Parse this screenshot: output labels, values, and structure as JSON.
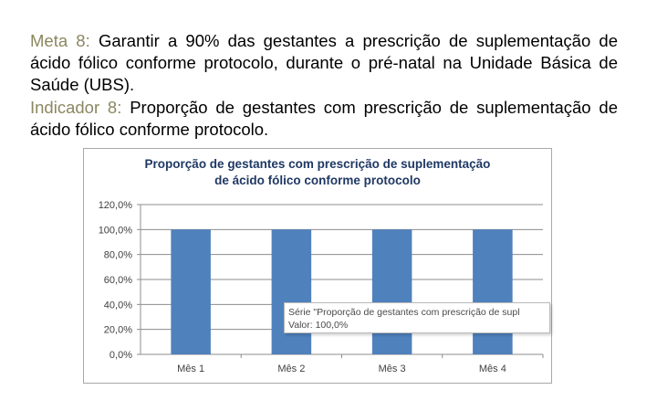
{
  "meta": {
    "label": "Meta 8:",
    "text": "Garantir a 90% das gestantes a prescrição de suplementação de ácido fólico conforme protocolo, durante o pré-natal na Unidade Básica de Saúde (UBS)."
  },
  "indicator": {
    "label": "Indicador 8:",
    "text": "Proporção de gestantes com prescrição de suplementação de ácido fólico conforme protocolo."
  },
  "chart_data": {
    "type": "bar",
    "title_line1": "Proporção de gestantes com prescrição de suplementação",
    "title_line2": "de ácido fólico conforme protocolo",
    "categories": [
      "Mês 1",
      "Mês 2",
      "Mês 3",
      "Mês 4"
    ],
    "series": [
      {
        "values": [
          100,
          100,
          100,
          100
        ]
      }
    ],
    "y_ticks": [
      "120,0%",
      "100,0%",
      "80,0%",
      "60,0%",
      "40,0%",
      "20,0%",
      "0,0%"
    ],
    "ylim": [
      0,
      120
    ],
    "grid": true,
    "bar_color": "#4f81bd"
  },
  "tooltip": {
    "line1": "Série \"Proporção de gestantes com prescrição de supl",
    "line2": "Valor: 100,0%"
  }
}
